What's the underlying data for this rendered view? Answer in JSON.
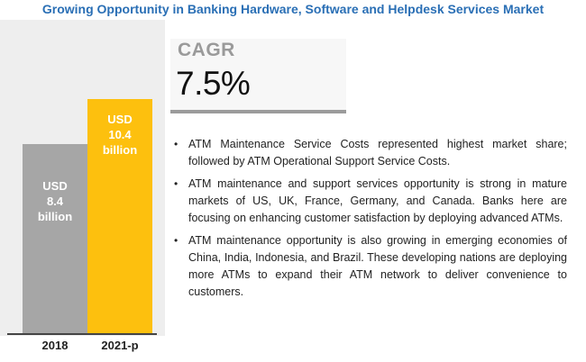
{
  "title": "Growing Opportunity in Banking Hardware, Software and Helpdesk Services Market",
  "cagr": {
    "label": "CAGR",
    "value": "7.5%"
  },
  "chart_data": {
    "type": "bar",
    "categories": [
      "2018",
      "2021-p"
    ],
    "values": [
      8.4,
      10.4
    ],
    "value_labels": [
      [
        "USD",
        "8.4",
        "billion"
      ],
      [
        "USD",
        "10.4",
        "billion"
      ]
    ],
    "colors": [
      "#a6a6a6",
      "#fdc00e"
    ],
    "ylim": [
      0,
      12
    ]
  },
  "bullets": [
    "ATM Maintenance Service Costs represented highest market share; followed by ATM Operational Support Service Costs.",
    "ATM maintenance and support services opportunity is strong in mature markets of US, UK, France, Germany, and Canada. Banks here are focusing on enhancing customer satisfaction by deploying advanced ATMs.",
    "ATM maintenance opportunity is also growing in emerging economies of China, India, Indonesia, and Brazil. These developing nations are deploying more ATMs to expand their ATM network to deliver convenience to customers."
  ],
  "bullet_symbol": "•"
}
